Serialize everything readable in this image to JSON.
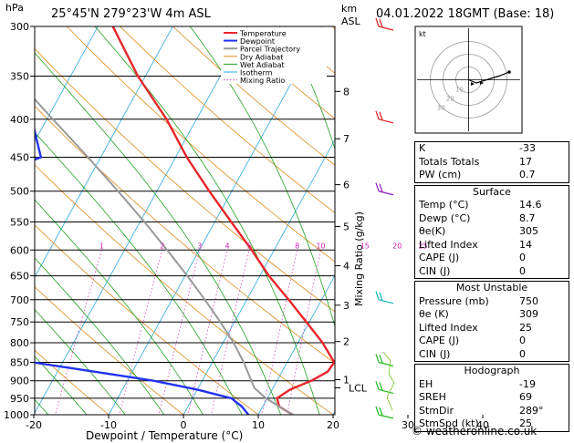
{
  "header": {
    "location": "25°45'N  279°23'W  4m  ASL",
    "datetime": "04.01.2022  18GMT  (Base: 18)",
    "pressure_unit": "hPa",
    "height_unit_km": "km",
    "height_unit_asl": "ASL"
  },
  "chart_data": {
    "type": "skew-t log-p",
    "xlabel": "Dewpoint / Temperature (°C)",
    "ylabel_right": "Mixing Ratio (g/kg)",
    "xlim": [
      -35,
      40
    ],
    "ylim": [
      1000,
      300
    ],
    "x_ticks": [
      -30,
      -20,
      -10,
      0,
      10,
      20,
      30,
      40
    ],
    "pressure_levels": [
      300,
      350,
      400,
      450,
      500,
      550,
      600,
      650,
      700,
      750,
      800,
      850,
      900,
      950,
      1000
    ],
    "km_ticks": [
      {
        "label": "8",
        "p": 367
      },
      {
        "label": "7",
        "p": 425
      },
      {
        "label": "6",
        "p": 490
      },
      {
        "label": "5",
        "p": 558
      },
      {
        "label": "4",
        "p": 630
      },
      {
        "label": "3",
        "p": 712
      },
      {
        "label": "2",
        "p": 797
      },
      {
        "label": "1",
        "p": 897
      }
    ],
    "lcl": {
      "label": "LCL",
      "p": 920
    },
    "mixing_ratio_labels": [
      "1",
      "2",
      "3",
      "4",
      "5",
      "8",
      "10",
      "15",
      "20",
      "25"
    ],
    "mixing_ratio_values": [
      1,
      2,
      3,
      4,
      5,
      8,
      10,
      15,
      20,
      25
    ],
    "mixing_ratio_label_p": 600,
    "legend": [
      "Temperature",
      "Dewpoint",
      "Parcel Trajectory",
      "Dry Adiabat",
      "Wet Adiabat",
      "Isotherm",
      "Mixing Ratio"
    ],
    "series": [
      {
        "name": "Temperature",
        "color": "#e8252a",
        "points": [
          [
            1000,
            14.6
          ],
          [
            975,
            12.2
          ],
          [
            950,
            11.3
          ],
          [
            925,
            12.4
          ],
          [
            900,
            14.6
          ],
          [
            875,
            16.1
          ],
          [
            850,
            16.3
          ],
          [
            800,
            13.3
          ],
          [
            750,
            9.6
          ],
          [
            700,
            5.6
          ],
          [
            650,
            1.2
          ],
          [
            600,
            -3.0
          ],
          [
            550,
            -7.8
          ],
          [
            500,
            -13.0
          ],
          [
            450,
            -18.5
          ],
          [
            400,
            -24.0
          ],
          [
            350,
            -31.0
          ],
          [
            300,
            -38.0
          ]
        ]
      },
      {
        "name": "Dewpoint",
        "color": "#2233ee",
        "points": [
          [
            1000,
            8.7
          ],
          [
            975,
            7.2
          ],
          [
            950,
            5.2
          ],
          [
            925,
            0.0
          ],
          [
            900,
            -6.5
          ],
          [
            875,
            -15.0
          ],
          [
            850,
            -24.0
          ],
          [
            800,
            -31.0
          ],
          [
            750,
            -28.0
          ],
          [
            700,
            -29.0
          ],
          [
            650,
            -36.0
          ],
          [
            600,
            -42.0
          ],
          [
            550,
            -45.0
          ],
          [
            500,
            -47.0
          ],
          [
            450,
            -38.0
          ],
          [
            400,
            -42.0
          ],
          [
            350,
            -45.0
          ],
          [
            300,
            -52.0
          ]
        ]
      },
      {
        "name": "Parcel Trajectory",
        "color": "#999999",
        "points": [
          [
            1000,
            14.6
          ],
          [
            950,
            9.8
          ],
          [
            920,
            7.5
          ],
          [
            850,
            4.2
          ],
          [
            800,
            1.4
          ],
          [
            750,
            -1.9
          ],
          [
            700,
            -5.6
          ],
          [
            650,
            -9.7
          ],
          [
            600,
            -14.3
          ],
          [
            550,
            -19.4
          ],
          [
            500,
            -25.2
          ],
          [
            450,
            -31.7
          ],
          [
            400,
            -39.2
          ],
          [
            350,
            -47.6
          ],
          [
            300,
            -57.0
          ]
        ]
      }
    ],
    "wind_barbs": [
      {
        "p": 300,
        "color": "#dd2222"
      },
      {
        "p": 400,
        "color": "#dd2222"
      },
      {
        "p": 500,
        "color": "#8a20c0"
      },
      {
        "p": 700,
        "color": "#10b8c0"
      },
      {
        "p": 850,
        "color": "#22bb22"
      },
      {
        "p": 925,
        "color": "#22bb22"
      },
      {
        "p": 1000,
        "color": "#22bb22"
      }
    ]
  },
  "hodograph": {
    "label": "kt",
    "ring_labels": [
      "10",
      "20",
      "30"
    ]
  },
  "stats": {
    "basic": [
      {
        "label": "K",
        "value": "-33"
      },
      {
        "label": "Totals Totals",
        "value": "17"
      },
      {
        "label": "PW (cm)",
        "value": "0.7"
      }
    ],
    "surface_title": "Surface",
    "surface": [
      {
        "label": "Temp (°C)",
        "value": "14.6"
      },
      {
        "label": "Dewp (°C)",
        "value": "8.7"
      },
      {
        "label": "θe(K)",
        "value": "305"
      },
      {
        "label": "Lifted Index",
        "value": "14"
      },
      {
        "label": "CAPE (J)",
        "value": "0"
      },
      {
        "label": "CIN (J)",
        "value": "0"
      }
    ],
    "unstable_title": "Most Unstable",
    "unstable": [
      {
        "label": "Pressure (mb)",
        "value": "750"
      },
      {
        "label": "θe (K)",
        "value": "309"
      },
      {
        "label": "Lifted Index",
        "value": "25"
      },
      {
        "label": "CAPE (J)",
        "value": "0"
      },
      {
        "label": "CIN (J)",
        "value": "0"
      }
    ],
    "hodo_title": "Hodograph",
    "hodo": [
      {
        "label": "EH",
        "value": "-19"
      },
      {
        "label": "SREH",
        "value": "69"
      },
      {
        "label": "StmDir",
        "value": "289°"
      },
      {
        "label": "StmSpd (kt)",
        "value": "25"
      }
    ]
  },
  "copyright": "© weatheronline.co.uk"
}
